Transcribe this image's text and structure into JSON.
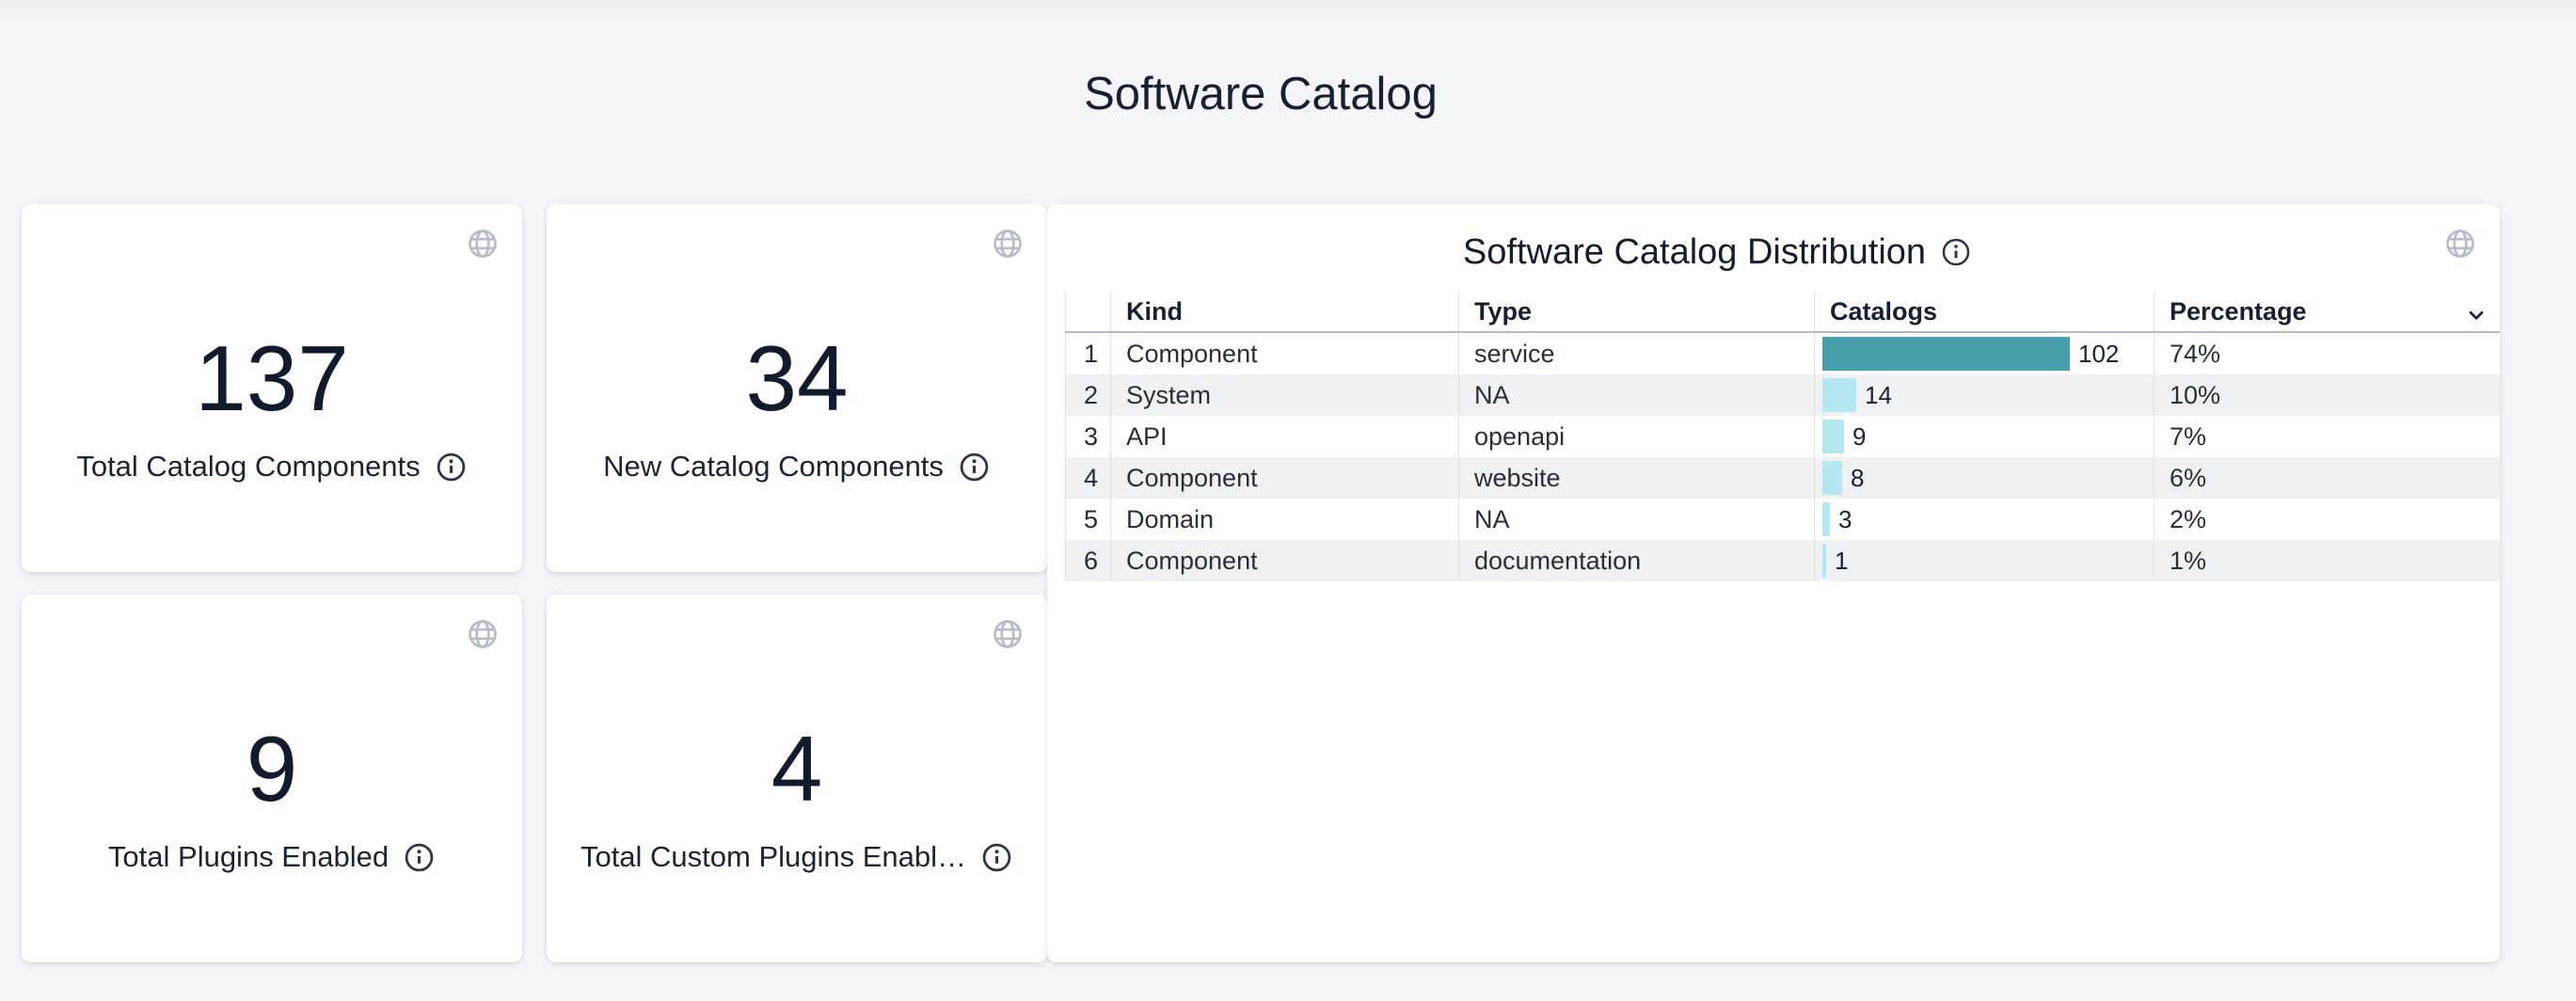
{
  "page": {
    "title": "Software Catalog"
  },
  "stat_cards": [
    {
      "value": "137",
      "label": "Total Catalog Components"
    },
    {
      "value": "34",
      "label": "New Catalog Components"
    },
    {
      "value": "9",
      "label": "Total Plugins Enabled"
    },
    {
      "value": "4",
      "label": "Total Custom Plugins Enabl…"
    }
  ],
  "distribution": {
    "title": "Software Catalog Distribution",
    "columns": {
      "kind": "Kind",
      "type": "Type",
      "catalogs": "Catalogs",
      "percentage": "Percentage"
    },
    "max_value": 102,
    "rows": [
      {
        "num": "1",
        "kind": "Component",
        "type": "service",
        "catalogs": 102,
        "percentage": "74%"
      },
      {
        "num": "2",
        "kind": "System",
        "type": "NA",
        "catalogs": 14,
        "percentage": "10%"
      },
      {
        "num": "3",
        "kind": "API",
        "type": "openapi",
        "catalogs": 9,
        "percentage": "7%"
      },
      {
        "num": "4",
        "kind": "Component",
        "type": "website",
        "catalogs": 8,
        "percentage": "6%"
      },
      {
        "num": "5",
        "kind": "Domain",
        "type": "NA",
        "catalogs": 3,
        "percentage": "2%"
      },
      {
        "num": "6",
        "kind": "Component",
        "type": "documentation",
        "catalogs": 1,
        "percentage": "1%"
      }
    ]
  },
  "colors": {
    "bar_primary": "#47a0ab",
    "bar_secondary": "#b4e7f0",
    "dark_text": "#17202f",
    "globe_icon": "#b7bdc8"
  },
  "chart_data": {
    "type": "bar",
    "orientation": "horizontal",
    "title": "Software Catalog Distribution",
    "categories": [
      "Component / service",
      "System / NA",
      "API / openapi",
      "Component / website",
      "Domain / NA",
      "Component / documentation"
    ],
    "values": [
      102,
      14,
      9,
      8,
      3,
      1
    ],
    "percentages": [
      74,
      10,
      7,
      6,
      2,
      1
    ],
    "xlabel": "Catalogs",
    "xlim": [
      0,
      102
    ]
  }
}
